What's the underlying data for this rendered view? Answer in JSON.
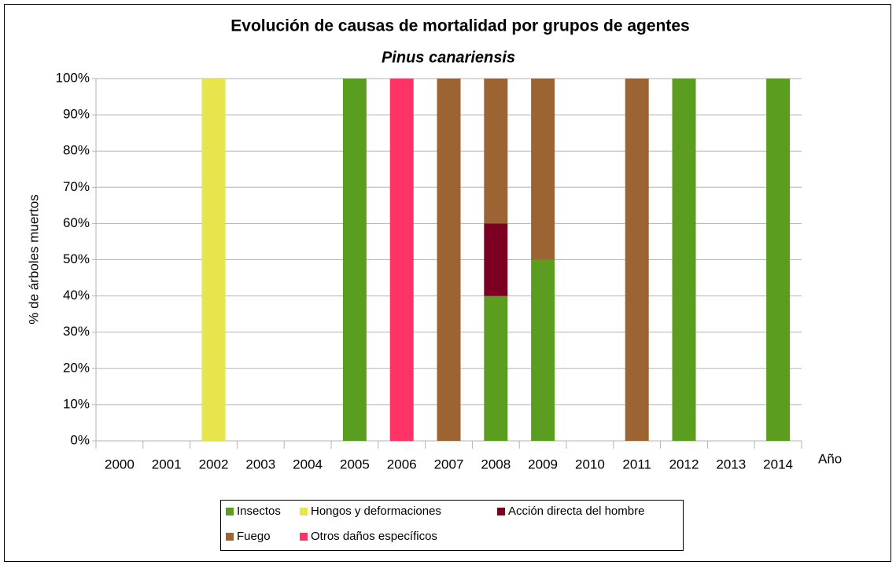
{
  "chart_data": {
    "type": "stacked_bar",
    "title": "Evolución de causas de mortalidad por grupos de agentes",
    "subtitle": "Pinus canariensis",
    "y_label": "% de árboles muertos",
    "x_label": "Año",
    "categories": [
      "2000",
      "2001",
      "2002",
      "2003",
      "2004",
      "2005",
      "2006",
      "2007",
      "2008",
      "2009",
      "2010",
      "2011",
      "2012",
      "2013",
      "2014"
    ],
    "series": [
      {
        "name": "Insectos",
        "color": "#5b9e1f",
        "values": [
          0,
          0,
          0,
          0,
          0,
          100,
          0,
          0,
          40,
          50,
          0,
          0,
          100,
          0,
          100
        ]
      },
      {
        "name": "Hongos y deformaciones",
        "color": "#e6e64c",
        "values": [
          0,
          0,
          100,
          0,
          0,
          0,
          0,
          0,
          0,
          0,
          0,
          0,
          0,
          0,
          0
        ]
      },
      {
        "name": "Acción directa del hombre",
        "color": "#7b0022",
        "values": [
          0,
          0,
          0,
          0,
          0,
          0,
          0,
          0,
          20,
          0,
          0,
          0,
          0,
          0,
          0
        ]
      },
      {
        "name": "Fuego",
        "color": "#9c6333",
        "values": [
          0,
          0,
          0,
          0,
          0,
          0,
          0,
          100,
          40,
          50,
          0,
          100,
          0,
          0,
          0
        ]
      },
      {
        "name": "Otros daños específicos",
        "color": "#ff3366",
        "values": [
          0,
          0,
          0,
          0,
          0,
          0,
          100,
          0,
          0,
          0,
          0,
          0,
          0,
          0,
          0
        ]
      }
    ],
    "ylim": [
      0,
      100
    ],
    "yticks": [
      {
        "value": 0,
        "label": "0%"
      },
      {
        "value": 10,
        "label": "10%"
      },
      {
        "value": 20,
        "label": "20%"
      },
      {
        "value": 30,
        "label": "30%"
      },
      {
        "value": 40,
        "label": "40%"
      },
      {
        "value": 50,
        "label": "50%"
      },
      {
        "value": 60,
        "label": "60%"
      },
      {
        "value": 70,
        "label": "70%"
      },
      {
        "value": 80,
        "label": "80%"
      },
      {
        "value": 90,
        "label": "90%"
      },
      {
        "value": 100,
        "label": "100%"
      }
    ],
    "grid": true,
    "legend": "bottom"
  }
}
